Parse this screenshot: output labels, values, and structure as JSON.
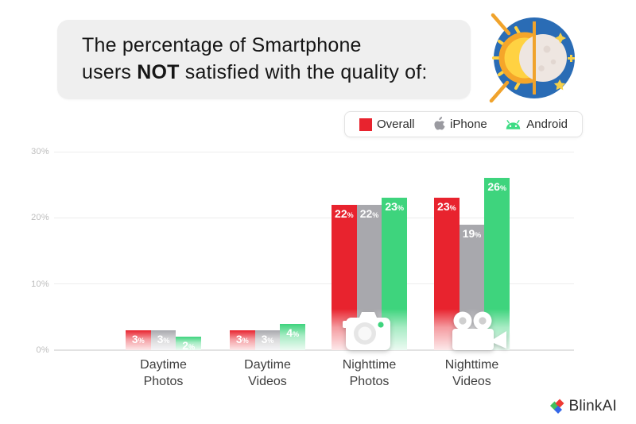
{
  "header": {
    "title": {
      "line1": "The percentage of Smartphone",
      "line2_prefix": "users ",
      "line2_bold": "NOT",
      "line2_suffix": " satisfied with the quality of:"
    },
    "icon": "day-night-sun-moon"
  },
  "legend": {
    "items": [
      {
        "label": "Overall",
        "swatch": "red-square",
        "color": "#e8232e"
      },
      {
        "label": "iPhone",
        "swatch": "apple-logo",
        "color": "#9a9aa0"
      },
      {
        "label": "Android",
        "swatch": "android-robot",
        "color": "#3ddc84"
      }
    ]
  },
  "chart_data": {
    "type": "bar",
    "title": "The percentage of Smartphone users NOT satisfied with the quality of:",
    "categories": [
      "Daytime Photos",
      "Daytime Videos",
      "Nighttime Photos",
      "Nighttime Videos"
    ],
    "series": [
      {
        "name": "Overall",
        "color": "#e8232e",
        "values": [
          3,
          3,
          22,
          23
        ]
      },
      {
        "name": "iPhone",
        "color": "#a8a8ad",
        "values": [
          3,
          3,
          22,
          19
        ]
      },
      {
        "name": "Android",
        "color": "#3ed47d",
        "values": [
          2,
          4,
          23,
          26
        ]
      }
    ],
    "unit": "%",
    "ylim": [
      0,
      30
    ],
    "yticks": [
      0,
      10,
      20,
      30
    ],
    "ytick_labels": [
      "0%",
      "10%",
      "20%",
      "30%"
    ],
    "grid": true,
    "legend_position": "top-right",
    "category_icons": [
      null,
      null,
      "camera-icon",
      "video-camera-icon"
    ]
  },
  "footer": {
    "brand": "BlinkAI"
  }
}
